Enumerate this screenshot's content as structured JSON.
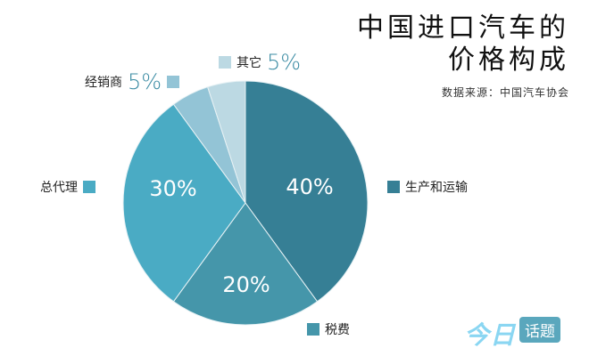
{
  "title_line1": "中国进口汽车的",
  "title_line2": "价格构成",
  "source": "数据来源：中国汽车协会",
  "logo": {
    "part1": "今日",
    "part2": "话题"
  },
  "chart_data": {
    "type": "pie",
    "title": "中国进口汽车的价格构成",
    "start": "top",
    "direction": "clockwise",
    "categories": [
      "生产和运输",
      "税费",
      "总代理",
      "经销商",
      "其它"
    ],
    "values": [
      40,
      20,
      30,
      5,
      5
    ],
    "labels": [
      "40%",
      "20%",
      "30%",
      "5%",
      "5%"
    ],
    "colors": [
      "#367f95",
      "#4596aa",
      "#4aabc4",
      "#93c4d6",
      "#bcd9e3"
    ]
  }
}
